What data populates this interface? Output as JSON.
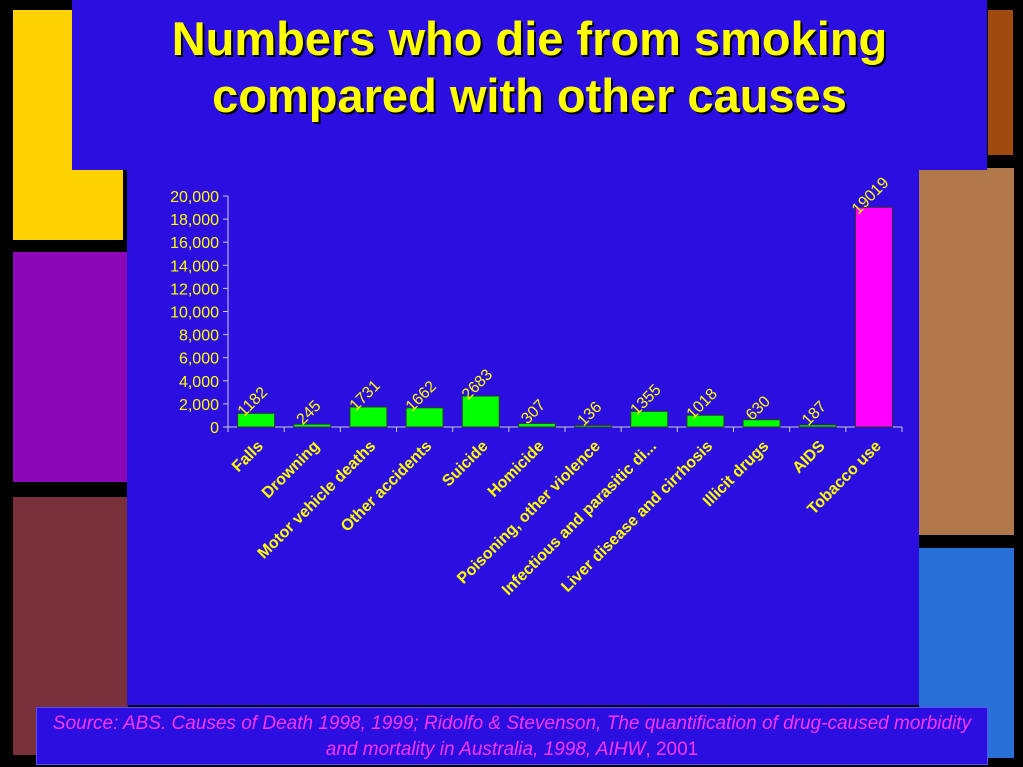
{
  "title_line1": "Numbers who die from smoking",
  "title_line2": "compared with other causes",
  "source_text": "Source: ABS. Causes of Death 1998, 1999;  Ridolfo & Stevenson, The quantification of drug-caused morbidity and mortality in Australia, 1998, AIHW",
  "source_year": ", 2001",
  "colors": {
    "panel": "#2a0fe0",
    "bar_default": "#00ff00",
    "bar_highlight": "#ff00ff",
    "title": "#ffff00",
    "label": "#ffff00",
    "source": "#ff33ff"
  },
  "chart_data": {
    "type": "bar",
    "title": "Numbers who die from smoking compared with other causes",
    "xlabel": "",
    "ylabel": "",
    "ylim": [
      0,
      20000
    ],
    "yticks": [
      "0",
      "2,000",
      "4,000",
      "6,000",
      "8,000",
      "10,000",
      "12,000",
      "14,000",
      "16,000",
      "18,000",
      "20,000"
    ],
    "categories": [
      "Falls",
      "Drowning",
      "Motor vehicle deaths",
      "Other accidents",
      "Suicide",
      "Homicide",
      "Poisoning, other violence",
      "Infectious and parasitic di...",
      "Liver disease and cirrhosis",
      "Illicit drugs",
      "AIDS",
      "Tobacco use"
    ],
    "values": [
      1182,
      245,
      1731,
      1662,
      2683,
      307,
      136,
      1355,
      1018,
      630,
      187,
      19019
    ],
    "data_labels": [
      "1182",
      "245",
      "1731",
      "1662",
      "2683",
      "307",
      "136",
      "1355",
      "1018",
      "630",
      "187",
      "19019"
    ],
    "highlight_index": 11,
    "grid": false,
    "legend": "none"
  }
}
